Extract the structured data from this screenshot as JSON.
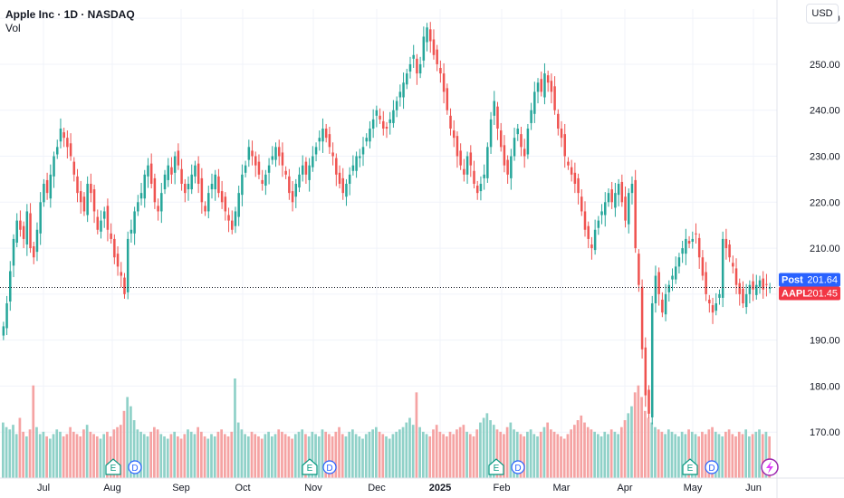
{
  "header": {
    "title": "Apple Inc · 1D · NASDAQ",
    "sublabel": "Vol",
    "currency": "USD"
  },
  "price_tags": {
    "post": {
      "label": "Post",
      "value": "201.64",
      "color": "#2962ff"
    },
    "last": {
      "label": "AAPL",
      "value": "201.45",
      "color": "#f23645"
    }
  },
  "colors": {
    "up": "#26a69a",
    "down": "#ef5350",
    "up_vol": "#8fd1c8",
    "down_vol": "#f5a3a3",
    "grid": "#f0f3fa"
  },
  "events": {
    "earnings_label": "E",
    "dividend_label": "D"
  },
  "chart_data": {
    "type": "candlestick",
    "title": "Apple Inc · 1D · NASDAQ",
    "ylim": [
      160,
      262
    ],
    "y_ticks": [
      "170.00",
      "180.00",
      "190.00",
      "200.00",
      "210.00",
      "220.00",
      "230.00",
      "240.00",
      "250.00",
      "260.00"
    ],
    "x_ticks": [
      "Jul",
      "Aug",
      "Sep",
      "Oct",
      "Nov",
      "Dec",
      "2025",
      "Feb",
      "Mar",
      "Apr",
      "May",
      "Jun"
    ],
    "last_price": 201.45,
    "post_price": 201.64,
    "closes": [
      193,
      198,
      205,
      212,
      216,
      214,
      212,
      218,
      210,
      208,
      214,
      220,
      224,
      222,
      226,
      230,
      232,
      236,
      234,
      232,
      230,
      226,
      222,
      220,
      218,
      224,
      222,
      218,
      214,
      216,
      218,
      214,
      212,
      208,
      206,
      204,
      200,
      212,
      214,
      218,
      220,
      222,
      226,
      228,
      224,
      220,
      218,
      222,
      226,
      228,
      226,
      230,
      228,
      224,
      222,
      224,
      226,
      228,
      224,
      220,
      218,
      222,
      224,
      226,
      222,
      220,
      218,
      216,
      214,
      218,
      222,
      226,
      228,
      232,
      230,
      228,
      226,
      224,
      226,
      228,
      230,
      232,
      230,
      228,
      226,
      222,
      220,
      224,
      226,
      228,
      226,
      228,
      230,
      232,
      234,
      236,
      234,
      232,
      230,
      226,
      224,
      222,
      224,
      226,
      228,
      230,
      230,
      232,
      234,
      236,
      238,
      240,
      238,
      236,
      236,
      238,
      240,
      242,
      244,
      246,
      248,
      250,
      252,
      248,
      250,
      256,
      258,
      255,
      252,
      250,
      248,
      244,
      240,
      236,
      234,
      230,
      228,
      226,
      230,
      228,
      224,
      222,
      224,
      226,
      232,
      238,
      242,
      236,
      232,
      228,
      226,
      230,
      234,
      236,
      232,
      230,
      236,
      240,
      244,
      246,
      244,
      248,
      246,
      244,
      240,
      236,
      234,
      230,
      228,
      226,
      224,
      222,
      218,
      214,
      212,
      210,
      214,
      216,
      218,
      220,
      222,
      220,
      222,
      224,
      220,
      216,
      222,
      224,
      210,
      202,
      188,
      178,
      174,
      198,
      204,
      200,
      196,
      200,
      202,
      204,
      206,
      208,
      210,
      212,
      211,
      212,
      213,
      208,
      204,
      200,
      198,
      196,
      198,
      200,
      212,
      210,
      208,
      206,
      202,
      200,
      198,
      200,
      202,
      201,
      202,
      203,
      201,
      202,
      201.45
    ],
    "volumes": [
      48,
      44,
      42,
      46,
      38,
      52,
      40,
      36,
      42,
      80,
      44,
      38,
      40,
      36,
      34,
      38,
      42,
      40,
      36,
      38,
      44,
      40,
      38,
      36,
      42,
      46,
      40,
      38,
      36,
      34,
      38,
      40,
      36,
      42,
      44,
      46,
      58,
      70,
      62,
      50,
      42,
      40,
      38,
      36,
      40,
      44,
      42,
      38,
      36,
      34,
      38,
      40,
      36,
      34,
      38,
      42,
      40,
      38,
      44,
      40,
      36,
      34,
      38,
      36,
      40,
      42,
      38,
      36,
      40,
      86,
      48,
      42,
      38,
      36,
      40,
      38,
      36,
      34,
      38,
      40,
      36,
      38,
      42,
      40,
      38,
      36,
      34,
      38,
      40,
      42,
      38,
      36,
      40,
      38,
      36,
      42,
      40,
      38,
      36,
      40,
      44,
      38,
      36,
      40,
      42,
      38,
      36,
      34,
      38,
      40,
      42,
      44,
      40,
      38,
      36,
      34,
      38,
      40,
      42,
      44,
      48,
      52,
      46,
      74,
      44,
      40,
      38,
      36,
      42,
      46,
      40,
      38,
      36,
      40,
      38,
      42,
      44,
      46,
      40,
      38,
      36,
      42,
      48,
      52,
      56,
      50,
      46,
      42,
      40,
      38,
      44,
      48,
      42,
      40,
      38,
      36,
      40,
      42,
      38,
      36,
      40,
      44,
      48,
      42,
      40,
      38,
      36,
      34,
      38,
      42,
      46,
      50,
      54,
      48,
      44,
      42,
      40,
      38,
      36,
      40,
      38,
      42,
      40,
      38,
      44,
      50,
      56,
      62,
      74,
      80,
      70,
      58,
      52,
      48,
      44,
      42,
      40,
      38,
      42,
      40,
      38,
      36,
      40,
      38,
      42,
      40,
      38,
      36,
      40,
      38,
      42,
      44,
      40,
      38,
      36,
      40,
      42,
      38,
      36,
      40,
      38,
      42,
      36,
      38,
      40,
      42,
      38,
      40,
      36
    ]
  }
}
